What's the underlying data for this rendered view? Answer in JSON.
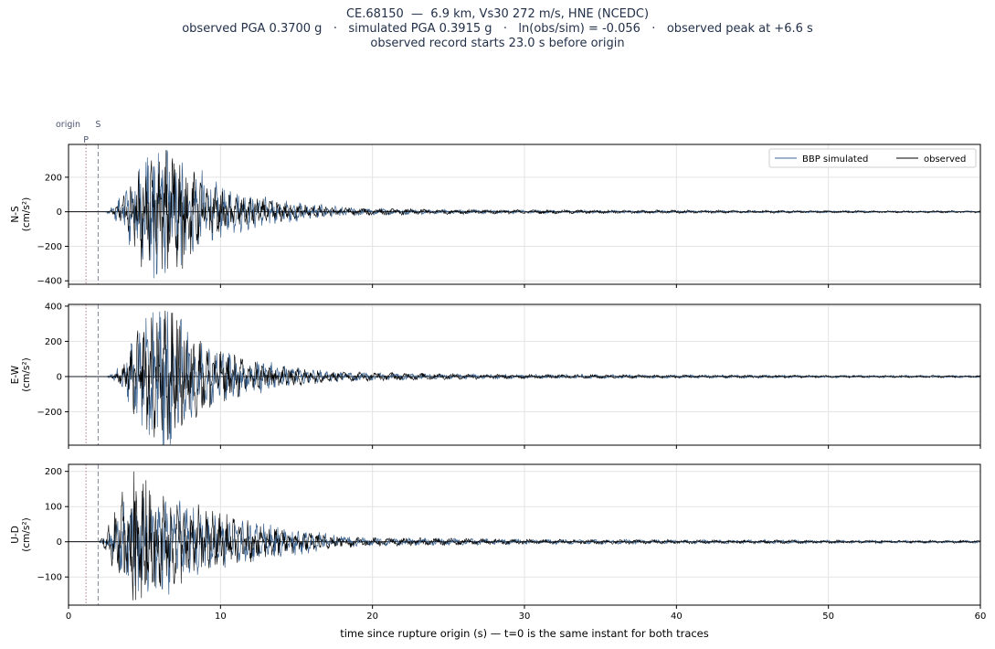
{
  "title_lines": [
    "CE.68150  —  6.9 km, Vs30 272 m/s, HNE (NCEDC)",
    "observed PGA 0.3700 g   ·   simulated PGA 0.3915 g   ·   ln(obs/sim) = -0.056   ·   observed peak at +6.6 s",
    "observed record starts 23.0 s before origin"
  ],
  "markers": {
    "origin_label": "origin",
    "p_label": "P",
    "s_label": "S",
    "p_time": 1.15,
    "s_time": 1.95
  },
  "legend": {
    "simulated_label": "BBP simulated",
    "observed_label": "observed",
    "placement": "top-right"
  },
  "xlabel": "time since rupture origin (s)   —   t=0 is the same instant for both traces",
  "colors": {
    "simulated": "#3d6490",
    "observed": "#000000",
    "p_marker": "#b07a8a",
    "s_marker": "#8a93a3",
    "grid": "#e3e3e3"
  },
  "chart_data": {
    "type": "line",
    "xlim": [
      0,
      60
    ],
    "xticks": [
      0,
      10,
      20,
      30,
      40,
      50,
      60
    ],
    "grid": true,
    "panels": [
      {
        "name": "N-S",
        "ylabel_lines": [
          "N-S",
          "(cm/s²)"
        ],
        "ylim": [
          -420,
          390
        ],
        "yticks": [
          -400,
          -200,
          0,
          200
        ],
        "series": [
          {
            "name": "BBP simulated",
            "envelope": [
              [
                0,
                0
              ],
              [
                2.4,
                0
              ],
              [
                3.0,
                30
              ],
              [
                3.6,
                120
              ],
              [
                4.2,
                210
              ],
              [
                4.8,
                260
              ],
              [
                5.3,
                300
              ],
              [
                5.9,
                340
              ],
              [
                6.5,
                320
              ],
              [
                7.0,
                280
              ],
              [
                7.6,
                240
              ],
              [
                8.3,
                200
              ],
              [
                9.0,
                170
              ],
              [
                10,
                130
              ],
              [
                11,
                100
              ],
              [
                12,
                85
              ],
              [
                13,
                70
              ],
              [
                14,
                55
              ],
              [
                15,
                45
              ],
              [
                16,
                40
              ],
              [
                17,
                30
              ],
              [
                18,
                22
              ],
              [
                20,
                15
              ],
              [
                25,
                10
              ],
              [
                30,
                8
              ],
              [
                40,
                6
              ],
              [
                50,
                5
              ],
              [
                60,
                4
              ]
            ],
            "peaks": [
              [
                5.6,
                -385
              ],
              [
                6.5,
                345
              ],
              [
                5.9,
                340
              ],
              [
                7.4,
                -310
              ],
              [
                8.8,
                240
              ]
            ]
          },
          {
            "name": "observed",
            "envelope": [
              [
                0,
                0
              ],
              [
                2.4,
                0
              ],
              [
                3.0,
                15
              ],
              [
                3.5,
                60
              ],
              [
                4.2,
                150
              ],
              [
                4.8,
                220
              ],
              [
                5.3,
                260
              ],
              [
                6.0,
                260
              ],
              [
                6.6,
                300
              ],
              [
                7.2,
                270
              ],
              [
                7.8,
                220
              ],
              [
                8.5,
                170
              ],
              [
                9.2,
                130
              ],
              [
                10,
                100
              ],
              [
                11,
                80
              ],
              [
                12,
                70
              ],
              [
                13,
                60
              ],
              [
                14,
                50
              ],
              [
                15,
                40
              ],
              [
                16,
                30
              ],
              [
                17,
                25
              ],
              [
                18,
                20
              ],
              [
                20,
                18
              ],
              [
                22,
                15
              ],
              [
                25,
                12
              ],
              [
                30,
                10
              ],
              [
                40,
                8
              ],
              [
                50,
                6
              ],
              [
                60,
                5
              ]
            ],
            "peaks": [
              [
                4.8,
                -320
              ],
              [
                6.5,
                -330
              ],
              [
                7.0,
                -310
              ],
              [
                7.5,
                -330
              ],
              [
                6.8,
                280
              ],
              [
                7.0,
                245
              ]
            ]
          }
        ]
      },
      {
        "name": "E-W",
        "ylabel_lines": [
          "E-W",
          "(cm/s²)"
        ],
        "ylim": [
          -390,
          410
        ],
        "yticks": [
          -200,
          0,
          200,
          400
        ],
        "series": [
          {
            "name": "BBP simulated",
            "envelope": [
              [
                0,
                0
              ],
              [
                2.4,
                0
              ],
              [
                3.0,
                20
              ],
              [
                3.6,
                80
              ],
              [
                4.2,
                200
              ],
              [
                4.8,
                270
              ],
              [
                5.5,
                320
              ],
              [
                6.2,
                340
              ],
              [
                6.8,
                320
              ],
              [
                7.4,
                260
              ],
              [
                8.2,
                200
              ],
              [
                9.0,
                160
              ],
              [
                10,
                130
              ],
              [
                11,
                110
              ],
              [
                12,
                90
              ],
              [
                13,
                70
              ],
              [
                14,
                55
              ],
              [
                15,
                45
              ],
              [
                16,
                35
              ],
              [
                17,
                28
              ],
              [
                18,
                22
              ],
              [
                20,
                18
              ],
              [
                25,
                12
              ],
              [
                30,
                10
              ],
              [
                40,
                8
              ],
              [
                50,
                6
              ],
              [
                60,
                5
              ]
            ],
            "peaks": [
              [
                6.0,
                370
              ],
              [
                6.5,
                370
              ],
              [
                6.6,
                -355
              ],
              [
                5.5,
                -300
              ]
            ]
          },
          {
            "name": "observed",
            "envelope": [
              [
                0,
                0
              ],
              [
                2.4,
                0
              ],
              [
                3.0,
                10
              ],
              [
                3.6,
                60
              ],
              [
                4.2,
                180
              ],
              [
                4.8,
                250
              ],
              [
                5.5,
                280
              ],
              [
                6.2,
                300
              ],
              [
                6.9,
                300
              ],
              [
                7.6,
                250
              ],
              [
                8.4,
                200
              ],
              [
                9.2,
                160
              ],
              [
                10,
                120
              ],
              [
                11,
                100
              ],
              [
                12,
                80
              ],
              [
                13,
                65
              ],
              [
                14,
                55
              ],
              [
                15,
                45
              ],
              [
                16,
                35
              ],
              [
                17,
                28
              ],
              [
                18,
                22
              ],
              [
                20,
                20
              ],
              [
                22,
                18
              ],
              [
                25,
                14
              ],
              [
                30,
                10
              ],
              [
                40,
                8
              ],
              [
                50,
                6
              ],
              [
                60,
                5
              ]
            ],
            "peaks": [
              [
                6.5,
                -360
              ],
              [
                7.1,
                320
              ]
            ]
          }
        ]
      },
      {
        "name": "U-D",
        "ylabel_lines": [
          "U-D",
          "(cm/s²)"
        ],
        "ylim": [
          -180,
          220
        ],
        "yticks": [
          -100,
          0,
          100,
          200
        ],
        "series": [
          {
            "name": "BBP simulated",
            "envelope": [
              [
                0,
                0
              ],
              [
                2.0,
                0
              ],
              [
                2.5,
                15
              ],
              [
                3.0,
                50
              ],
              [
                3.6,
                90
              ],
              [
                4.2,
                120
              ],
              [
                4.8,
                130
              ],
              [
                5.4,
                120
              ],
              [
                6.0,
                110
              ],
              [
                7.0,
                95
              ],
              [
                8.0,
                80
              ],
              [
                9.0,
                70
              ],
              [
                10,
                60
              ],
              [
                11,
                50
              ],
              [
                12,
                45
              ],
              [
                13,
                40
              ],
              [
                14,
                35
              ],
              [
                15,
                30
              ],
              [
                16,
                25
              ],
              [
                17,
                20
              ],
              [
                18,
                15
              ],
              [
                20,
                10
              ],
              [
                25,
                8
              ],
              [
                30,
                6
              ],
              [
                40,
                5
              ],
              [
                50,
                4
              ],
              [
                60,
                3
              ]
            ],
            "peaks": [
              [
                6.6,
                -150
              ],
              [
                4.6,
                -140
              ]
            ]
          },
          {
            "name": "observed",
            "envelope": [
              [
                0,
                0
              ],
              [
                2.0,
                0
              ],
              [
                2.4,
                20
              ],
              [
                3.0,
                70
              ],
              [
                3.6,
                120
              ],
              [
                4.2,
                150
              ],
              [
                4.8,
                150
              ],
              [
                5.4,
                140
              ],
              [
                6.0,
                125
              ],
              [
                7.0,
                110
              ],
              [
                8.0,
                95
              ],
              [
                9.0,
                80
              ],
              [
                10,
                65
              ],
              [
                11,
                55
              ],
              [
                12,
                45
              ],
              [
                13,
                40
              ],
              [
                14,
                32
              ],
              [
                15,
                28
              ],
              [
                16,
                22
              ],
              [
                17,
                18
              ],
              [
                18,
                14
              ],
              [
                20,
                10
              ],
              [
                25,
                8
              ],
              [
                30,
                6
              ],
              [
                40,
                5
              ],
              [
                50,
                4
              ],
              [
                60,
                3
              ]
            ],
            "peaks": [
              [
                4.3,
                200
              ],
              [
                5.1,
                175
              ],
              [
                4.4,
                -165
              ],
              [
                4.8,
                -160
              ]
            ]
          }
        ]
      }
    ]
  }
}
